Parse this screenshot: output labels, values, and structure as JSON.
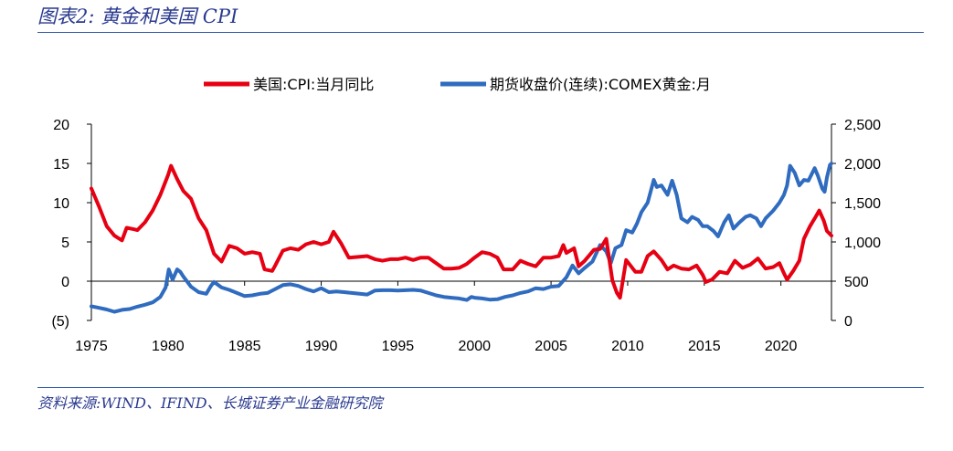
{
  "figure": {
    "title": "图表2:  黄金和美国 CPI",
    "source": "资料来源:WIND、IFIND、长城证券产业金融研究院"
  },
  "chart_data": {
    "type": "line",
    "title": "",
    "xlabel": "",
    "x_range": [
      1975,
      2023.3
    ],
    "x_ticks": [
      1975,
      1980,
      1985,
      1990,
      1995,
      2000,
      2005,
      2010,
      2015,
      2020
    ],
    "left_axis": {
      "ylim": [
        -5,
        20
      ],
      "ticks": [
        -5,
        0,
        5,
        10,
        15,
        20
      ],
      "tick_labels": [
        "(5)",
        "0",
        "5",
        "10",
        "15",
        "20"
      ]
    },
    "right_axis": {
      "ylim": [
        0,
        2500
      ],
      "ticks": [
        0,
        500,
        1000,
        1500,
        2000,
        2500
      ],
      "tick_labels": [
        "0",
        "500",
        "1,000",
        "1,500",
        "2,000",
        "2,500"
      ]
    },
    "legend_position": "top-center",
    "series": [
      {
        "name": "美国:CPI:当月同比",
        "axis": "left",
        "color": "#e60012",
        "points": [
          [
            1975.0,
            11.8
          ],
          [
            1975.5,
            9.5
          ],
          [
            1976.0,
            7.0
          ],
          [
            1976.5,
            5.8
          ],
          [
            1977.0,
            5.2
          ],
          [
            1977.3,
            6.8
          ],
          [
            1977.8,
            6.6
          ],
          [
            1978.0,
            6.5
          ],
          [
            1978.5,
            7.5
          ],
          [
            1979.0,
            9.0
          ],
          [
            1979.5,
            11.0
          ],
          [
            1980.0,
            13.5
          ],
          [
            1980.2,
            14.7
          ],
          [
            1980.6,
            13.0
          ],
          [
            1981.0,
            11.5
          ],
          [
            1981.5,
            10.5
          ],
          [
            1982.0,
            8.0
          ],
          [
            1982.5,
            6.5
          ],
          [
            1983.0,
            3.5
          ],
          [
            1983.5,
            2.5
          ],
          [
            1984.0,
            4.5
          ],
          [
            1984.5,
            4.2
          ],
          [
            1985.0,
            3.5
          ],
          [
            1985.5,
            3.7
          ],
          [
            1986.0,
            3.5
          ],
          [
            1986.3,
            1.5
          ],
          [
            1986.8,
            1.3
          ],
          [
            1987.0,
            2.0
          ],
          [
            1987.5,
            3.9
          ],
          [
            1988.0,
            4.2
          ],
          [
            1988.5,
            4.0
          ],
          [
            1989.0,
            4.7
          ],
          [
            1989.5,
            5.0
          ],
          [
            1990.0,
            4.7
          ],
          [
            1990.5,
            5.0
          ],
          [
            1990.8,
            6.3
          ],
          [
            1991.3,
            4.8
          ],
          [
            1991.8,
            3.0
          ],
          [
            1992.5,
            3.1
          ],
          [
            1993.0,
            3.2
          ],
          [
            1993.5,
            2.8
          ],
          [
            1994.0,
            2.6
          ],
          [
            1994.5,
            2.8
          ],
          [
            1995.0,
            2.8
          ],
          [
            1995.5,
            3.0
          ],
          [
            1996.0,
            2.7
          ],
          [
            1996.5,
            3.0
          ],
          [
            1997.0,
            3.0
          ],
          [
            1997.5,
            2.3
          ],
          [
            1998.0,
            1.6
          ],
          [
            1998.5,
            1.6
          ],
          [
            1999.0,
            1.7
          ],
          [
            1999.5,
            2.2
          ],
          [
            2000.0,
            3.0
          ],
          [
            2000.5,
            3.7
          ],
          [
            2001.0,
            3.5
          ],
          [
            2001.5,
            3.0
          ],
          [
            2001.9,
            1.5
          ],
          [
            2002.5,
            1.5
          ],
          [
            2003.0,
            2.6
          ],
          [
            2003.5,
            2.2
          ],
          [
            2004.0,
            1.9
          ],
          [
            2004.5,
            3.0
          ],
          [
            2005.0,
            3.0
          ],
          [
            2005.5,
            3.2
          ],
          [
            2005.8,
            4.6
          ],
          [
            2006.0,
            3.6
          ],
          [
            2006.5,
            4.2
          ],
          [
            2006.8,
            1.9
          ],
          [
            2007.2,
            2.6
          ],
          [
            2007.8,
            4.0
          ],
          [
            2008.2,
            4.1
          ],
          [
            2008.6,
            5.4
          ],
          [
            2009.0,
            0.1
          ],
          [
            2009.3,
            -1.5
          ],
          [
            2009.5,
            -2.1
          ],
          [
            2009.9,
            2.7
          ],
          [
            2010.5,
            1.2
          ],
          [
            2010.9,
            1.2
          ],
          [
            2011.3,
            3.2
          ],
          [
            2011.7,
            3.8
          ],
          [
            2012.2,
            2.7
          ],
          [
            2012.6,
            1.5
          ],
          [
            2013.0,
            2.0
          ],
          [
            2013.5,
            1.6
          ],
          [
            2014.0,
            1.5
          ],
          [
            2014.5,
            2.0
          ],
          [
            2014.9,
            0.8
          ],
          [
            2015.1,
            -0.1
          ],
          [
            2015.5,
            0.2
          ],
          [
            2016.0,
            1.2
          ],
          [
            2016.5,
            1.0
          ],
          [
            2017.0,
            2.6
          ],
          [
            2017.5,
            1.7
          ],
          [
            2018.0,
            2.1
          ],
          [
            2018.5,
            2.9
          ],
          [
            2019.0,
            1.6
          ],
          [
            2019.5,
            1.8
          ],
          [
            2019.9,
            2.3
          ],
          [
            2020.2,
            1.0
          ],
          [
            2020.4,
            0.2
          ],
          [
            2020.8,
            1.3
          ],
          [
            2021.2,
            2.6
          ],
          [
            2021.5,
            5.4
          ],
          [
            2021.9,
            7.0
          ],
          [
            2022.3,
            8.3
          ],
          [
            2022.5,
            9.0
          ],
          [
            2022.8,
            7.7
          ],
          [
            2023.0,
            6.4
          ],
          [
            2023.3,
            5.8
          ]
        ]
      },
      {
        "name": "期货收盘价(连续):COMEX黄金:月",
        "axis": "right",
        "color": "#2f6bbf",
        "points": [
          [
            1975.0,
            180
          ],
          [
            1975.5,
            160
          ],
          [
            1976.0,
            140
          ],
          [
            1976.5,
            110
          ],
          [
            1977.0,
            135
          ],
          [
            1977.5,
            145
          ],
          [
            1978.0,
            175
          ],
          [
            1978.5,
            200
          ],
          [
            1979.0,
            230
          ],
          [
            1979.5,
            300
          ],
          [
            1979.85,
            420
          ],
          [
            1980.05,
            650
          ],
          [
            1980.3,
            520
          ],
          [
            1980.6,
            650
          ],
          [
            1980.8,
            620
          ],
          [
            1981.0,
            560
          ],
          [
            1981.5,
            430
          ],
          [
            1982.0,
            360
          ],
          [
            1982.5,
            340
          ],
          [
            1982.8,
            440
          ],
          [
            1983.0,
            490
          ],
          [
            1983.5,
            420
          ],
          [
            1984.0,
            390
          ],
          [
            1984.5,
            350
          ],
          [
            1985.0,
            310
          ],
          [
            1985.5,
            320
          ],
          [
            1986.0,
            340
          ],
          [
            1986.5,
            350
          ],
          [
            1987.0,
            400
          ],
          [
            1987.5,
            450
          ],
          [
            1988.0,
            460
          ],
          [
            1988.5,
            440
          ],
          [
            1989.0,
            400
          ],
          [
            1989.5,
            370
          ],
          [
            1990.0,
            410
          ],
          [
            1990.5,
            360
          ],
          [
            1991.0,
            370
          ],
          [
            1991.5,
            360
          ],
          [
            1992.0,
            350
          ],
          [
            1992.5,
            340
          ],
          [
            1993.0,
            330
          ],
          [
            1993.5,
            380
          ],
          [
            1994.0,
            385
          ],
          [
            1994.5,
            385
          ],
          [
            1995.0,
            380
          ],
          [
            1996.0,
            390
          ],
          [
            1996.5,
            380
          ],
          [
            1997.0,
            350
          ],
          [
            1997.5,
            320
          ],
          [
            1998.0,
            300
          ],
          [
            1998.5,
            290
          ],
          [
            1999.0,
            280
          ],
          [
            1999.5,
            260
          ],
          [
            1999.8,
            300
          ],
          [
            2000.0,
            290
          ],
          [
            2000.5,
            280
          ],
          [
            2001.0,
            265
          ],
          [
            2001.5,
            270
          ],
          [
            2002.0,
            300
          ],
          [
            2002.5,
            320
          ],
          [
            2003.0,
            350
          ],
          [
            2003.5,
            370
          ],
          [
            2004.0,
            410
          ],
          [
            2004.5,
            400
          ],
          [
            2005.0,
            430
          ],
          [
            2005.5,
            440
          ],
          [
            2006.0,
            550
          ],
          [
            2006.4,
            700
          ],
          [
            2006.8,
            600
          ],
          [
            2007.2,
            670
          ],
          [
            2007.7,
            750
          ],
          [
            2008.2,
            960
          ],
          [
            2008.6,
            880
          ],
          [
            2008.9,
            730
          ],
          [
            2009.2,
            920
          ],
          [
            2009.6,
            960
          ],
          [
            2009.9,
            1150
          ],
          [
            2010.3,
            1120
          ],
          [
            2010.6,
            1230
          ],
          [
            2010.9,
            1380
          ],
          [
            2011.3,
            1500
          ],
          [
            2011.7,
            1790
          ],
          [
            2011.9,
            1700
          ],
          [
            2012.2,
            1720
          ],
          [
            2012.6,
            1600
          ],
          [
            2012.9,
            1780
          ],
          [
            2013.2,
            1600
          ],
          [
            2013.5,
            1300
          ],
          [
            2013.9,
            1250
          ],
          [
            2014.2,
            1320
          ],
          [
            2014.6,
            1280
          ],
          [
            2014.9,
            1200
          ],
          [
            2015.2,
            1200
          ],
          [
            2015.6,
            1140
          ],
          [
            2015.9,
            1070
          ],
          [
            2016.3,
            1250
          ],
          [
            2016.6,
            1340
          ],
          [
            2016.9,
            1170
          ],
          [
            2017.3,
            1250
          ],
          [
            2017.7,
            1320
          ],
          [
            2018.0,
            1340
          ],
          [
            2018.4,
            1300
          ],
          [
            2018.7,
            1200
          ],
          [
            2019.0,
            1300
          ],
          [
            2019.5,
            1400
          ],
          [
            2019.9,
            1500
          ],
          [
            2020.2,
            1600
          ],
          [
            2020.4,
            1720
          ],
          [
            2020.6,
            1970
          ],
          [
            2020.9,
            1880
          ],
          [
            2021.2,
            1720
          ],
          [
            2021.5,
            1790
          ],
          [
            2021.8,
            1780
          ],
          [
            2022.2,
            1940
          ],
          [
            2022.4,
            1850
          ],
          [
            2022.7,
            1680
          ],
          [
            2022.85,
            1640
          ],
          [
            2023.0,
            1820
          ],
          [
            2023.2,
            1980
          ],
          [
            2023.3,
            2000
          ]
        ]
      }
    ]
  }
}
